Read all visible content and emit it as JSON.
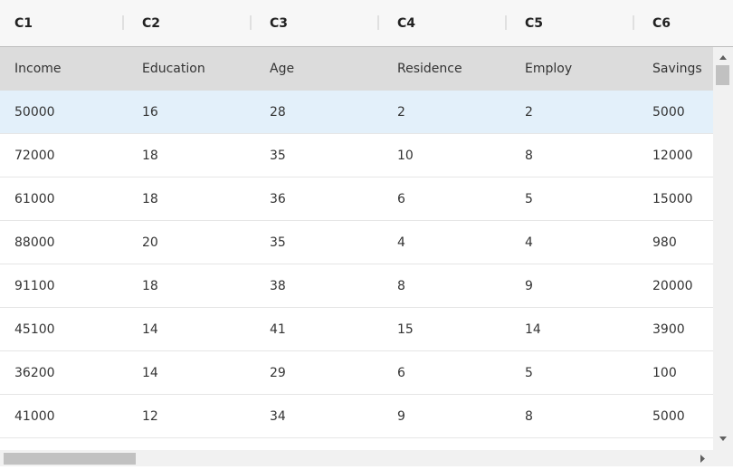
{
  "table": {
    "columns": [
      "C1",
      "C2",
      "C3",
      "C4",
      "C5",
      "C6"
    ],
    "field_row": [
      "Income",
      "Education",
      "Age",
      "Residence",
      "Employ",
      "Savings"
    ],
    "rows": [
      [
        50000,
        16,
        28,
        2,
        2,
        5000
      ],
      [
        72000,
        18,
        35,
        10,
        8,
        12000
      ],
      [
        61000,
        18,
        36,
        6,
        5,
        15000
      ],
      [
        88000,
        20,
        35,
        4,
        4,
        980
      ],
      [
        91100,
        18,
        38,
        8,
        9,
        20000
      ],
      [
        45100,
        14,
        41,
        15,
        14,
        3900
      ],
      [
        36200,
        14,
        29,
        6,
        5,
        100
      ],
      [
        41000,
        12,
        34,
        9,
        8,
        5000
      ]
    ]
  }
}
